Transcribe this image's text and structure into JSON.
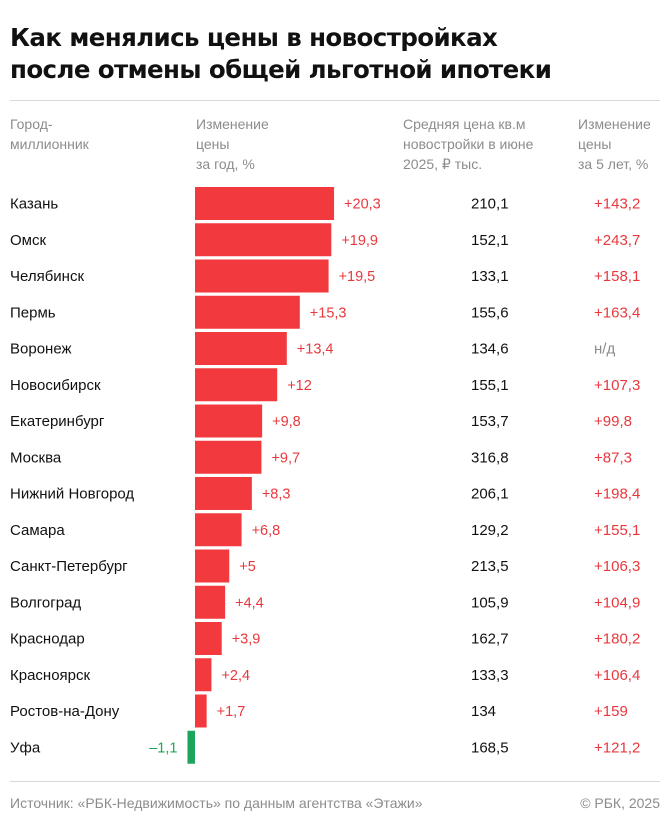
{
  "title_line1": "Как менялись цены в новостройках",
  "title_line2": "после отмены общей льготной ипотеки",
  "headers": {
    "city": [
      "Город-",
      "миллионник"
    ],
    "change_year": [
      "Изменение",
      "цены",
      "за год, %"
    ],
    "avg_price": [
      "Средняя цена кв.м",
      "новостройки в июне",
      "2025, ₽ тыс."
    ],
    "change_5y": [
      "Изменение",
      "цены",
      "за 5 лет, %"
    ]
  },
  "chart_data": {
    "type": "table",
    "cities": [
      "Казань",
      "Омск",
      "Челябинск",
      "Пермь",
      "Воронеж",
      "Новосибирск",
      "Екатеринбург",
      "Москва",
      "Нижний Новгород",
      "Самара",
      "Санкт-Петербург",
      "Волгоград",
      "Краснодар",
      "Красноярск",
      "Ростов-на-Дону",
      "Уфа"
    ],
    "change_year_values": [
      20.3,
      19.9,
      19.5,
      15.3,
      13.4,
      12,
      9.8,
      9.7,
      8.3,
      6.8,
      5,
      4.4,
      3.9,
      2.4,
      1.7,
      -1.1
    ],
    "change_year_labels": [
      "+20,3",
      "+19,9",
      "+19,5",
      "+15,3",
      "+13,4",
      "+12",
      "+9,8",
      "+9,7",
      "+8,3",
      "+6,8",
      "+5",
      "+4,4",
      "+3,9",
      "+2,4",
      "+1,7",
      "–1,1"
    ],
    "avg_price_labels": [
      "210,1",
      "152,1",
      "133,1",
      "155,6",
      "134,6",
      "155,1",
      "153,7",
      "316,8",
      "206,1",
      "129,2",
      "213,5",
      "105,9",
      "162,7",
      "133,3",
      "134",
      "168,5"
    ],
    "change_5y_labels": [
      "+143,2",
      "+243,7",
      "+158,1",
      "+163,4",
      "н/д",
      "+107,3",
      "+99,8",
      "+87,3",
      "+198,4",
      "+155,1",
      "+106,3",
      "+104,9",
      "+180,2",
      "+106,4",
      "+159",
      "+121,2"
    ],
    "colors": {
      "positive": "#f2393d",
      "negative": "#1ea55c",
      "text_positive": "#e8383d",
      "text_muted": "#8c8c8c"
    }
  },
  "footer": {
    "source": "Источник: «РБК-Недвижимость» по данным агентства «Этажи»",
    "copyright": "© РБК, 2025"
  }
}
